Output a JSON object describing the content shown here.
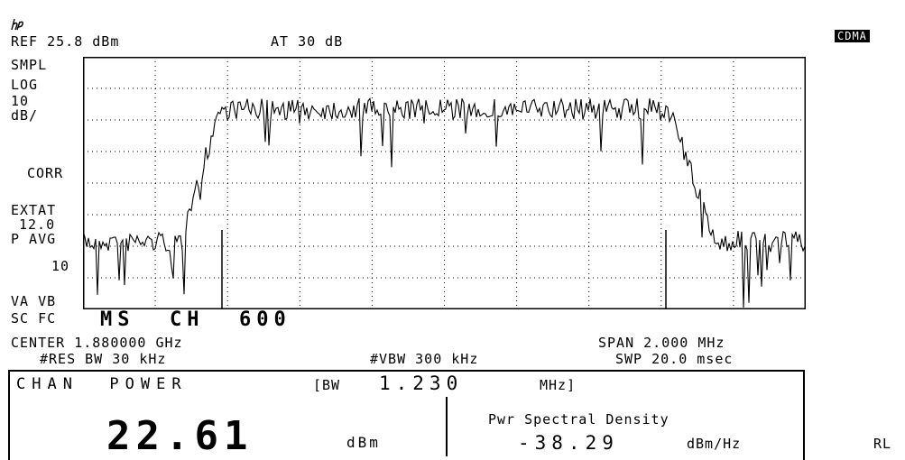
{
  "header": {
    "ref_level": "REF 25.8 dBm",
    "attenuation": "AT 30 dB",
    "mode_badge": "CDMA"
  },
  "left_annotations": {
    "smpl": "SMPL",
    "log": "LOG",
    "scale_value": "10",
    "scale_unit": "dB/",
    "corr": "CORR",
    "extat_label": "EXTAT",
    "extat_value": "12.0",
    "pavg_label": "P AVG",
    "pavg_value": "10",
    "vavb": "VA VB",
    "scfc": "SC FC"
  },
  "channel_label": "MS  CH  600",
  "settings": {
    "center": "CENTER 1.880000 GHz",
    "span": "SPAN 2.000 MHz",
    "res_bw": "#RES BW 30 kHz",
    "vbw": "#VBW 300 kHz",
    "sweep": "SWP 20.0 msec"
  },
  "measurement": {
    "title": "CHAN  POWER",
    "bw_prefix": "[BW",
    "bw_value": "1.230",
    "bw_unit": "MHz]",
    "power_value": "22.61",
    "power_unit": "dBm",
    "density_label": "Pwr Spectral Density",
    "density_value": "-38.29",
    "density_unit": "dBm/Hz"
  },
  "corner_label": "RL",
  "spectrum": {
    "ref_level_dbm": 25.8,
    "db_per_div": 10,
    "divisions_x": 10,
    "divisions_y": 8,
    "center_ghz": 1.88,
    "span_mhz": 2.0,
    "trace_color": "#000000"
  }
}
